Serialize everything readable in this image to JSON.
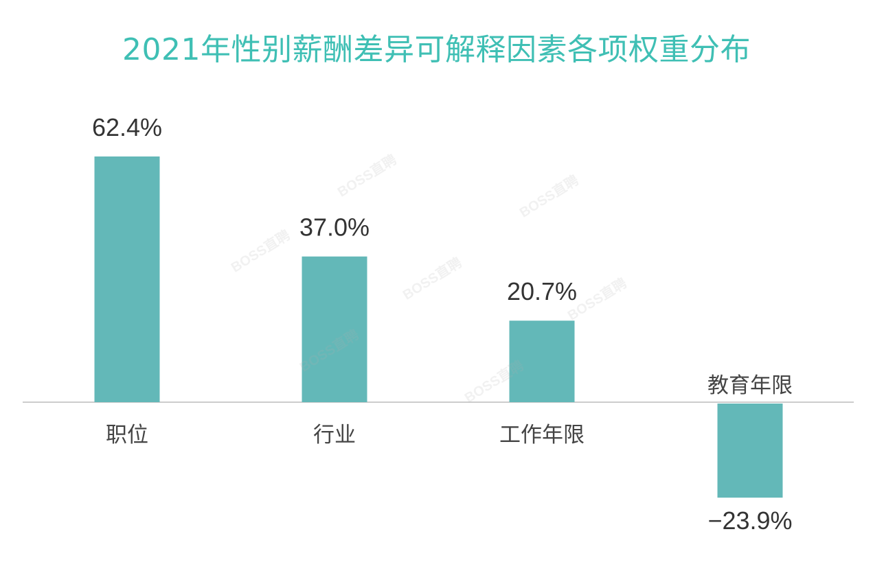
{
  "colors": {
    "title": "#3fbfb4",
    "bar": "#63b8b8",
    "axis": "#cccccc",
    "label": "#333333",
    "category": "#444444"
  },
  "watermark_text": "BOSS直聘",
  "chart_data": {
    "type": "bar",
    "title": "2021年性别薪酬差异可解释因素各项权重分布",
    "categories": [
      "职位",
      "行业",
      "工作年限",
      "教育年限"
    ],
    "values": [
      62.4,
      37.0,
      20.7,
      -23.9
    ],
    "data_labels": [
      "62.4%",
      "37.0%",
      "20.7%",
      "−23.9%"
    ],
    "unit": "%",
    "ylim": [
      -30,
      70
    ],
    "xlabel": "",
    "ylabel": "",
    "grid": false,
    "legend": "none"
  }
}
